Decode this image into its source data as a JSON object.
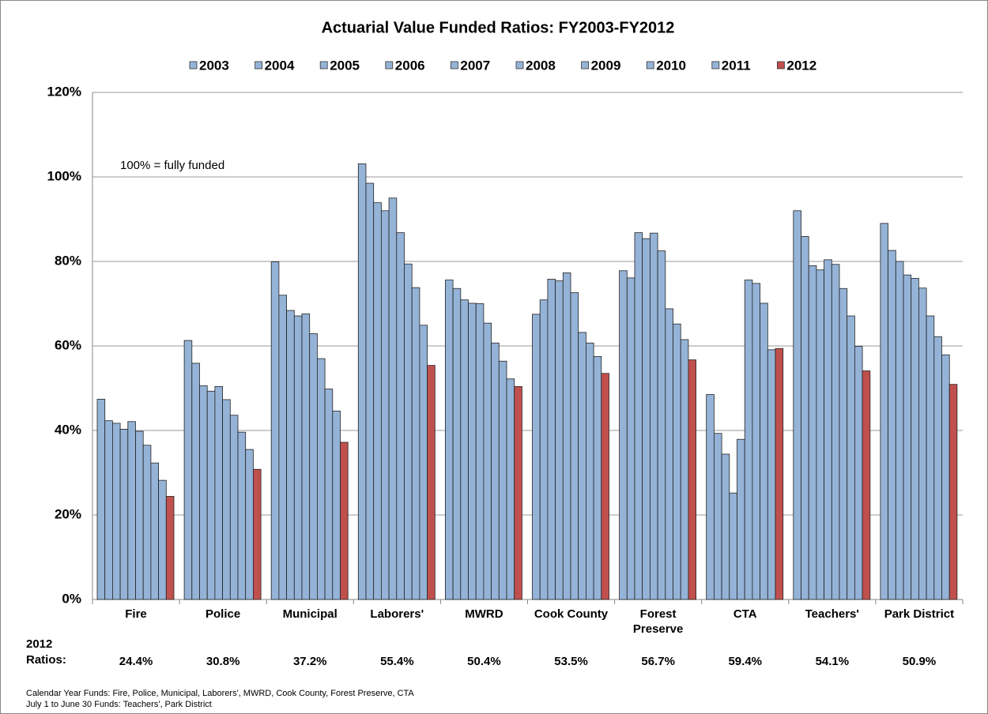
{
  "chart_data": {
    "type": "bar",
    "title": "Actuarial Value Funded Ratios: FY2003-FY2012",
    "annotation": "100% = fully funded",
    "ratios_label": "2012 Ratios:",
    "footnotes": [
      "Calendar Year Funds: Fire, Police, Municipal, Laborers', MWRD, Cook County, Forest Preserve, CTA",
      "July 1 to June 30 Funds: Teachers', Park District"
    ],
    "categories": [
      "Fire",
      "Police",
      "Municipal",
      "Laborers'",
      "MWRD",
      "Cook County",
      "Forest Preserve",
      "CTA",
      "Teachers'",
      "Park District"
    ],
    "ylim": [
      0,
      120
    ],
    "yticks": [
      {
        "value": 0,
        "label": "0%"
      },
      {
        "value": 20,
        "label": "20%"
      },
      {
        "value": 40,
        "label": "40%"
      },
      {
        "value": 60,
        "label": "60%"
      },
      {
        "value": 80,
        "label": "80%"
      },
      {
        "value": 100,
        "label": "100%"
      },
      {
        "value": 120,
        "label": "120%"
      }
    ],
    "grid": true,
    "legend": "top",
    "series": [
      {
        "name": "2003",
        "color": "#95b3d7",
        "values": [
          47.4,
          61.3,
          79.9,
          103.1,
          75.6,
          67.5,
          77.8,
          48.5,
          92.0,
          89.0
        ]
      },
      {
        "name": "2004",
        "color": "#95b3d7",
        "values": [
          42.3,
          55.9,
          72.0,
          98.5,
          73.6,
          70.9,
          76.1,
          39.3,
          85.9,
          82.6
        ]
      },
      {
        "name": "2005",
        "color": "#95b3d7",
        "values": [
          41.7,
          50.6,
          68.4,
          93.9,
          70.9,
          75.8,
          86.8,
          34.4,
          79.0,
          80.0
        ]
      },
      {
        "name": "2006",
        "color": "#95b3d7",
        "values": [
          40.3,
          49.3,
          67.1,
          92.0,
          70.1,
          75.4,
          85.4,
          25.2,
          78.0,
          76.8
        ]
      },
      {
        "name": "2007",
        "color": "#95b3d7",
        "values": [
          42.1,
          50.4,
          67.6,
          95.0,
          70.0,
          77.3,
          86.7,
          37.9,
          80.4,
          76.0
        ]
      },
      {
        "name": "2008",
        "color": "#95b3d7",
        "values": [
          39.8,
          47.3,
          62.9,
          86.8,
          65.4,
          72.6,
          82.5,
          75.6,
          79.3,
          73.7
        ]
      },
      {
        "name": "2009",
        "color": "#95b3d7",
        "values": [
          36.5,
          43.6,
          57.0,
          79.4,
          60.7,
          63.2,
          68.8,
          74.8,
          73.6,
          67.1
        ]
      },
      {
        "name": "2010",
        "color": "#95b3d7",
        "values": [
          32.3,
          39.6,
          49.8,
          73.8,
          56.4,
          60.7,
          65.2,
          70.1,
          67.1,
          62.2
        ]
      },
      {
        "name": "2011",
        "color": "#95b3d7",
        "values": [
          28.2,
          35.5,
          44.6,
          64.9,
          52.2,
          57.5,
          61.5,
          59.1,
          59.9,
          57.9
        ]
      },
      {
        "name": "2012",
        "color": "#c0504d",
        "values": [
          24.4,
          30.8,
          37.2,
          55.4,
          50.4,
          53.5,
          56.7,
          59.4,
          54.1,
          50.9
        ],
        "value_labels": [
          "24.4%",
          "30.8%",
          "37.2%",
          "55.4%",
          "50.4%",
          "53.5%",
          "56.7%",
          "59.4%",
          "54.1%",
          "50.9%"
        ]
      }
    ]
  }
}
